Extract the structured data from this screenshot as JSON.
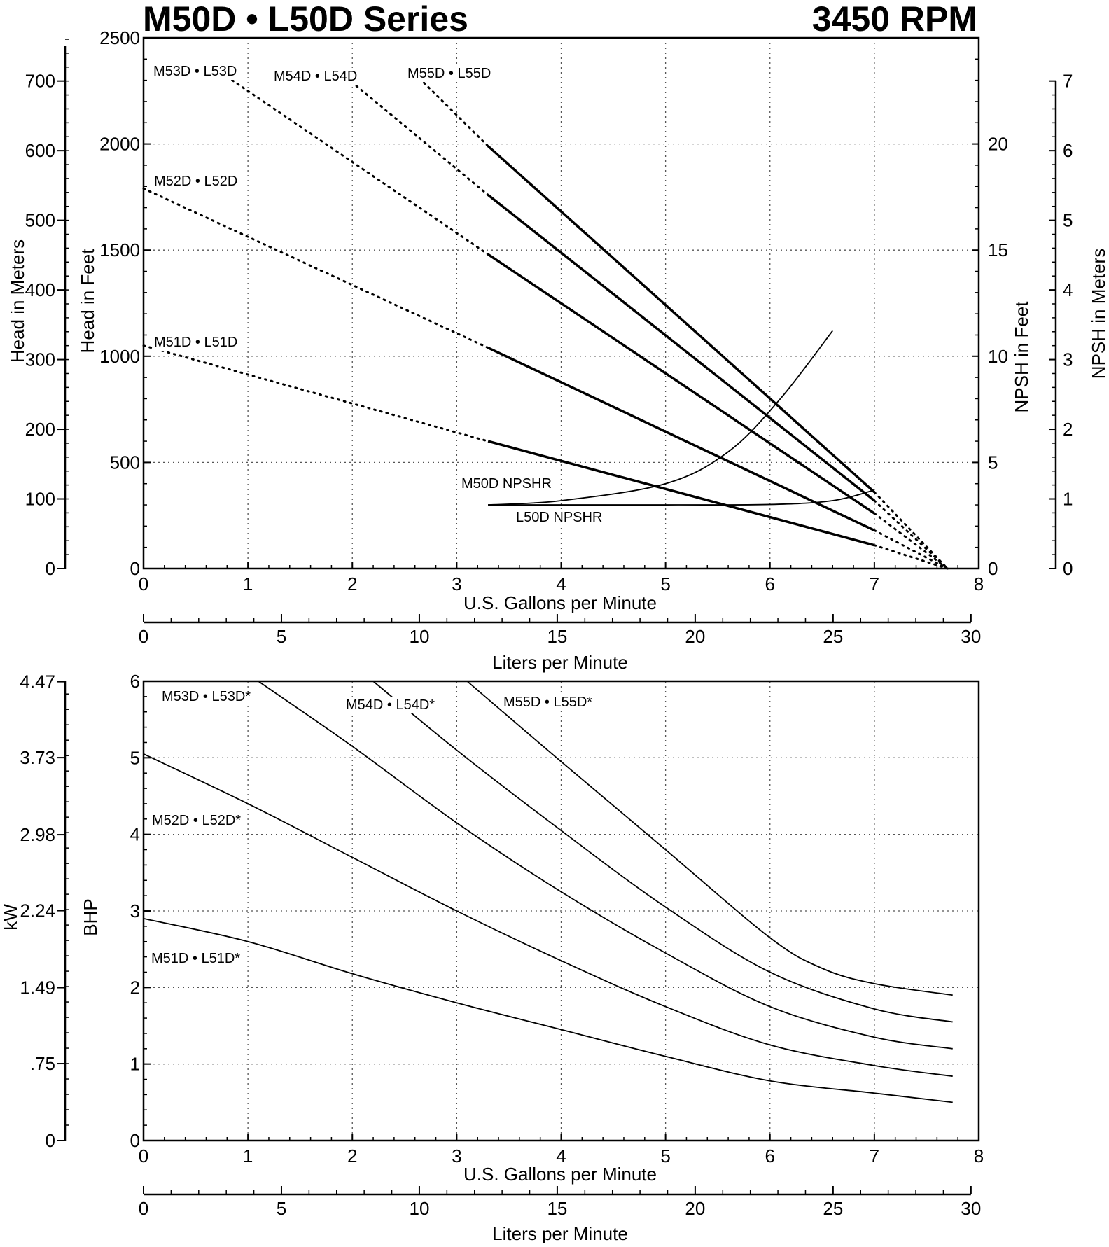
{
  "header": {
    "title": "M50D • L50D Series",
    "speed": "3450 RPM"
  },
  "chart_data": [
    {
      "type": "line",
      "name": "head_capacity",
      "xlabel": "U.S. Gallons per Minute",
      "x2label": "Liters per Minute",
      "ylabel": "Head in Feet",
      "y2label": "Head in Meters",
      "ry1label": "NPSH in Feet",
      "ry2label": "NPSH in Meters",
      "xlim": [
        0,
        8
      ],
      "ylim": [
        0,
        2500
      ],
      "xticks": [
        "0",
        "1",
        "2",
        "3",
        "4",
        "5",
        "6",
        "7",
        "8"
      ],
      "yticks": [
        "0",
        "500",
        "1000",
        "1500",
        "2000",
        "2500"
      ],
      "x2ticks": [
        "0",
        "5",
        "10",
        "15",
        "20",
        "25",
        "30"
      ],
      "y2ticks": [
        "0",
        "100",
        "200",
        "300",
        "400",
        "500",
        "600",
        "700"
      ],
      "ry1ticks": [
        "0",
        "5",
        "10",
        "15",
        "20"
      ],
      "ry2ticks": [
        "0",
        "1",
        "2",
        "3",
        "4",
        "5",
        "6",
        "7"
      ],
      "grid": true,
      "series": [
        {
          "name": "M51D • L51D",
          "style": "performance",
          "points": [
            [
              0,
              1050
            ],
            [
              3.3,
              600
            ],
            [
              7.0,
              110
            ],
            [
              7.7,
              0
            ]
          ]
        },
        {
          "name": "M52D • L52D",
          "style": "performance",
          "points": [
            [
              0,
              1790
            ],
            [
              3.3,
              1040
            ],
            [
              7.0,
              180
            ],
            [
              7.7,
              0
            ]
          ]
        },
        {
          "name": "M53D • L53D",
          "style": "performance",
          "points": [
            [
              0.7,
              2350
            ],
            [
              3.3,
              1480
            ],
            [
              7.0,
              260
            ],
            [
              7.7,
              0
            ]
          ]
        },
        {
          "name": "M54D • L54D",
          "style": "performance",
          "points": [
            [
              1.9,
              2330
            ],
            [
              3.3,
              1760
            ],
            [
              7.0,
              320
            ],
            [
              7.7,
              0
            ]
          ]
        },
        {
          "name": "M55D • L55D",
          "style": "performance",
          "points": [
            [
              2.6,
              2330
            ],
            [
              3.3,
              1990
            ],
            [
              7.0,
              360
            ],
            [
              7.7,
              0
            ]
          ]
        },
        {
          "name": "M50D NPSHR",
          "style": "npsh",
          "points": [
            [
              3.3,
              300
            ],
            [
              4.0,
              320
            ],
            [
              5.0,
              400
            ],
            [
              5.6,
              550
            ],
            [
              6.1,
              800
            ],
            [
              6.6,
              1120
            ]
          ]
        },
        {
          "name": "L50D NPSHR",
          "style": "npsh",
          "points": [
            [
              3.3,
              300
            ],
            [
              5.0,
              300
            ],
            [
              6.0,
              302
            ],
            [
              6.6,
              320
            ],
            [
              7.0,
              370
            ]
          ]
        }
      ]
    },
    {
      "type": "line",
      "name": "brake_horsepower",
      "xlabel": "U.S. Gallons per Minute",
      "x2label": "Liters per Minute",
      "ylabel": "BHP",
      "y2label": "kW",
      "xlim": [
        0,
        8
      ],
      "ylim": [
        0,
        6
      ],
      "xticks": [
        "0",
        "1",
        "2",
        "3",
        "4",
        "5",
        "6",
        "7",
        "8"
      ],
      "yticks": [
        "0",
        "1",
        "2",
        "3",
        "4",
        "5",
        "6"
      ],
      "x2ticks": [
        "0",
        "5",
        "10",
        "15",
        "20",
        "25",
        "30"
      ],
      "y2ticks": [
        "0",
        ".75",
        "1.49",
        "2.24",
        "2.98",
        "3.73",
        "4.47"
      ],
      "grid": true,
      "series": [
        {
          "name": "M51D • L51D*",
          "points": [
            [
              0,
              2.9
            ],
            [
              1,
              2.6
            ],
            [
              2,
              2.18
            ],
            [
              3,
              1.8
            ],
            [
              4,
              1.45
            ],
            [
              5,
              1.1
            ],
            [
              6,
              0.78
            ],
            [
              7,
              0.62
            ],
            [
              7.75,
              0.5
            ]
          ]
        },
        {
          "name": "M52D • L52D*",
          "points": [
            [
              0,
              5.05
            ],
            [
              1,
              4.4
            ],
            [
              2,
              3.7
            ],
            [
              3,
              3.0
            ],
            [
              4,
              2.35
            ],
            [
              5,
              1.75
            ],
            [
              6,
              1.25
            ],
            [
              7,
              0.98
            ],
            [
              7.75,
              0.84
            ]
          ]
        },
        {
          "name": "M53D • L53D*",
          "points": [
            [
              1.1,
              6.0
            ],
            [
              2,
              5.15
            ],
            [
              3,
              4.15
            ],
            [
              4,
              3.25
            ],
            [
              5,
              2.45
            ],
            [
              6,
              1.75
            ],
            [
              7,
              1.35
            ],
            [
              7.75,
              1.2
            ]
          ]
        },
        {
          "name": "M54D • L54D*",
          "points": [
            [
              2.2,
              6.0
            ],
            [
              3,
              5.1
            ],
            [
              4,
              4.05
            ],
            [
              5,
              3.05
            ],
            [
              6,
              2.2
            ],
            [
              7,
              1.72
            ],
            [
              7.75,
              1.55
            ]
          ]
        },
        {
          "name": "M55D • L55D*",
          "points": [
            [
              3.1,
              6.0
            ],
            [
              4,
              4.95
            ],
            [
              5,
              3.8
            ],
            [
              6,
              2.65
            ],
            [
              6.5,
              2.25
            ],
            [
              7,
              2.05
            ],
            [
              7.75,
              1.9
            ]
          ]
        }
      ]
    }
  ]
}
